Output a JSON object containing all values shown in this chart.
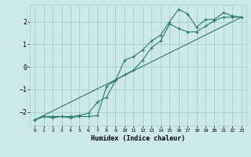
{
  "xlabel": "Humidex (Indice chaleur)",
  "bg_color": "#cce8e8",
  "grid_color": "#aacccc",
  "line_color": "#2a7a6a",
  "xlim": [
    -0.5,
    23.5
  ],
  "ylim": [
    -2.6,
    2.75
  ],
  "xticks": [
    0,
    1,
    2,
    3,
    4,
    5,
    6,
    7,
    8,
    9,
    10,
    11,
    12,
    13,
    14,
    15,
    16,
    17,
    18,
    19,
    20,
    21,
    22,
    23
  ],
  "yticks": [
    -2,
    -1,
    0,
    1,
    2
  ],
  "line1_x": [
    0,
    1,
    2,
    3,
    4,
    5,
    6,
    7,
    8,
    9,
    10,
    11,
    12,
    13,
    14,
    15,
    16,
    17,
    18,
    19,
    20,
    21,
    22,
    23
  ],
  "line1_y": [
    -2.35,
    -2.2,
    -2.2,
    -2.2,
    -2.2,
    -2.15,
    -2.05,
    -1.55,
    -1.35,
    -0.6,
    0.3,
    0.45,
    0.75,
    1.15,
    1.4,
    2.0,
    2.55,
    2.35,
    1.75,
    2.1,
    2.1,
    2.4,
    2.25,
    2.2
  ],
  "line2_x": [
    0,
    1,
    2,
    3,
    4,
    5,
    6,
    7,
    8,
    9,
    10,
    11,
    12,
    13,
    14,
    15,
    16,
    17,
    18,
    19,
    20,
    21,
    22,
    23
  ],
  "line2_y": [
    -2.35,
    -2.2,
    -2.25,
    -2.2,
    -2.25,
    -2.2,
    -2.2,
    -2.15,
    -0.85,
    -0.6,
    -0.35,
    -0.15,
    0.3,
    0.85,
    1.15,
    1.9,
    1.7,
    1.55,
    1.55,
    1.8,
    2.05,
    2.2,
    2.2,
    2.2
  ],
  "line3_x": [
    0,
    23
  ],
  "line3_y": [
    -2.35,
    2.2
  ]
}
